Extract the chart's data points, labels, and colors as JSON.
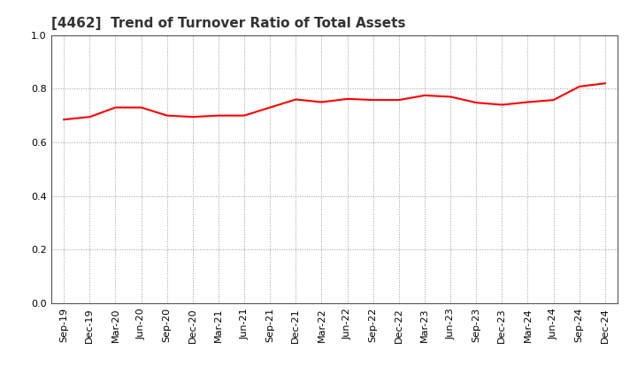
{
  "title": "[4462]  Trend of Turnover Ratio of Total Assets",
  "x_labels": [
    "Sep-19",
    "Dec-19",
    "Mar-20",
    "Jun-20",
    "Sep-20",
    "Dec-20",
    "Mar-21",
    "Jun-21",
    "Sep-21",
    "Dec-21",
    "Mar-22",
    "Jun-22",
    "Sep-22",
    "Dec-22",
    "Mar-23",
    "Jun-23",
    "Sep-23",
    "Dec-23",
    "Mar-24",
    "Jun-24",
    "Sep-24",
    "Dec-24"
  ],
  "y_values": [
    0.685,
    0.695,
    0.73,
    0.73,
    0.7,
    0.695,
    0.7,
    0.7,
    0.73,
    0.76,
    0.75,
    0.762,
    0.758,
    0.758,
    0.775,
    0.77,
    0.748,
    0.74,
    0.75,
    0.758,
    0.808,
    0.82
  ],
  "line_color": "#FF0000",
  "line_width": 1.5,
  "ylim": [
    0.0,
    1.0
  ],
  "yticks": [
    0.0,
    0.2,
    0.4,
    0.6,
    0.8,
    1.0
  ],
  "grid_color": "#999999",
  "title_fontsize": 11,
  "tick_fontsize": 8,
  "background_color": "#ffffff",
  "title_color": "#333333"
}
